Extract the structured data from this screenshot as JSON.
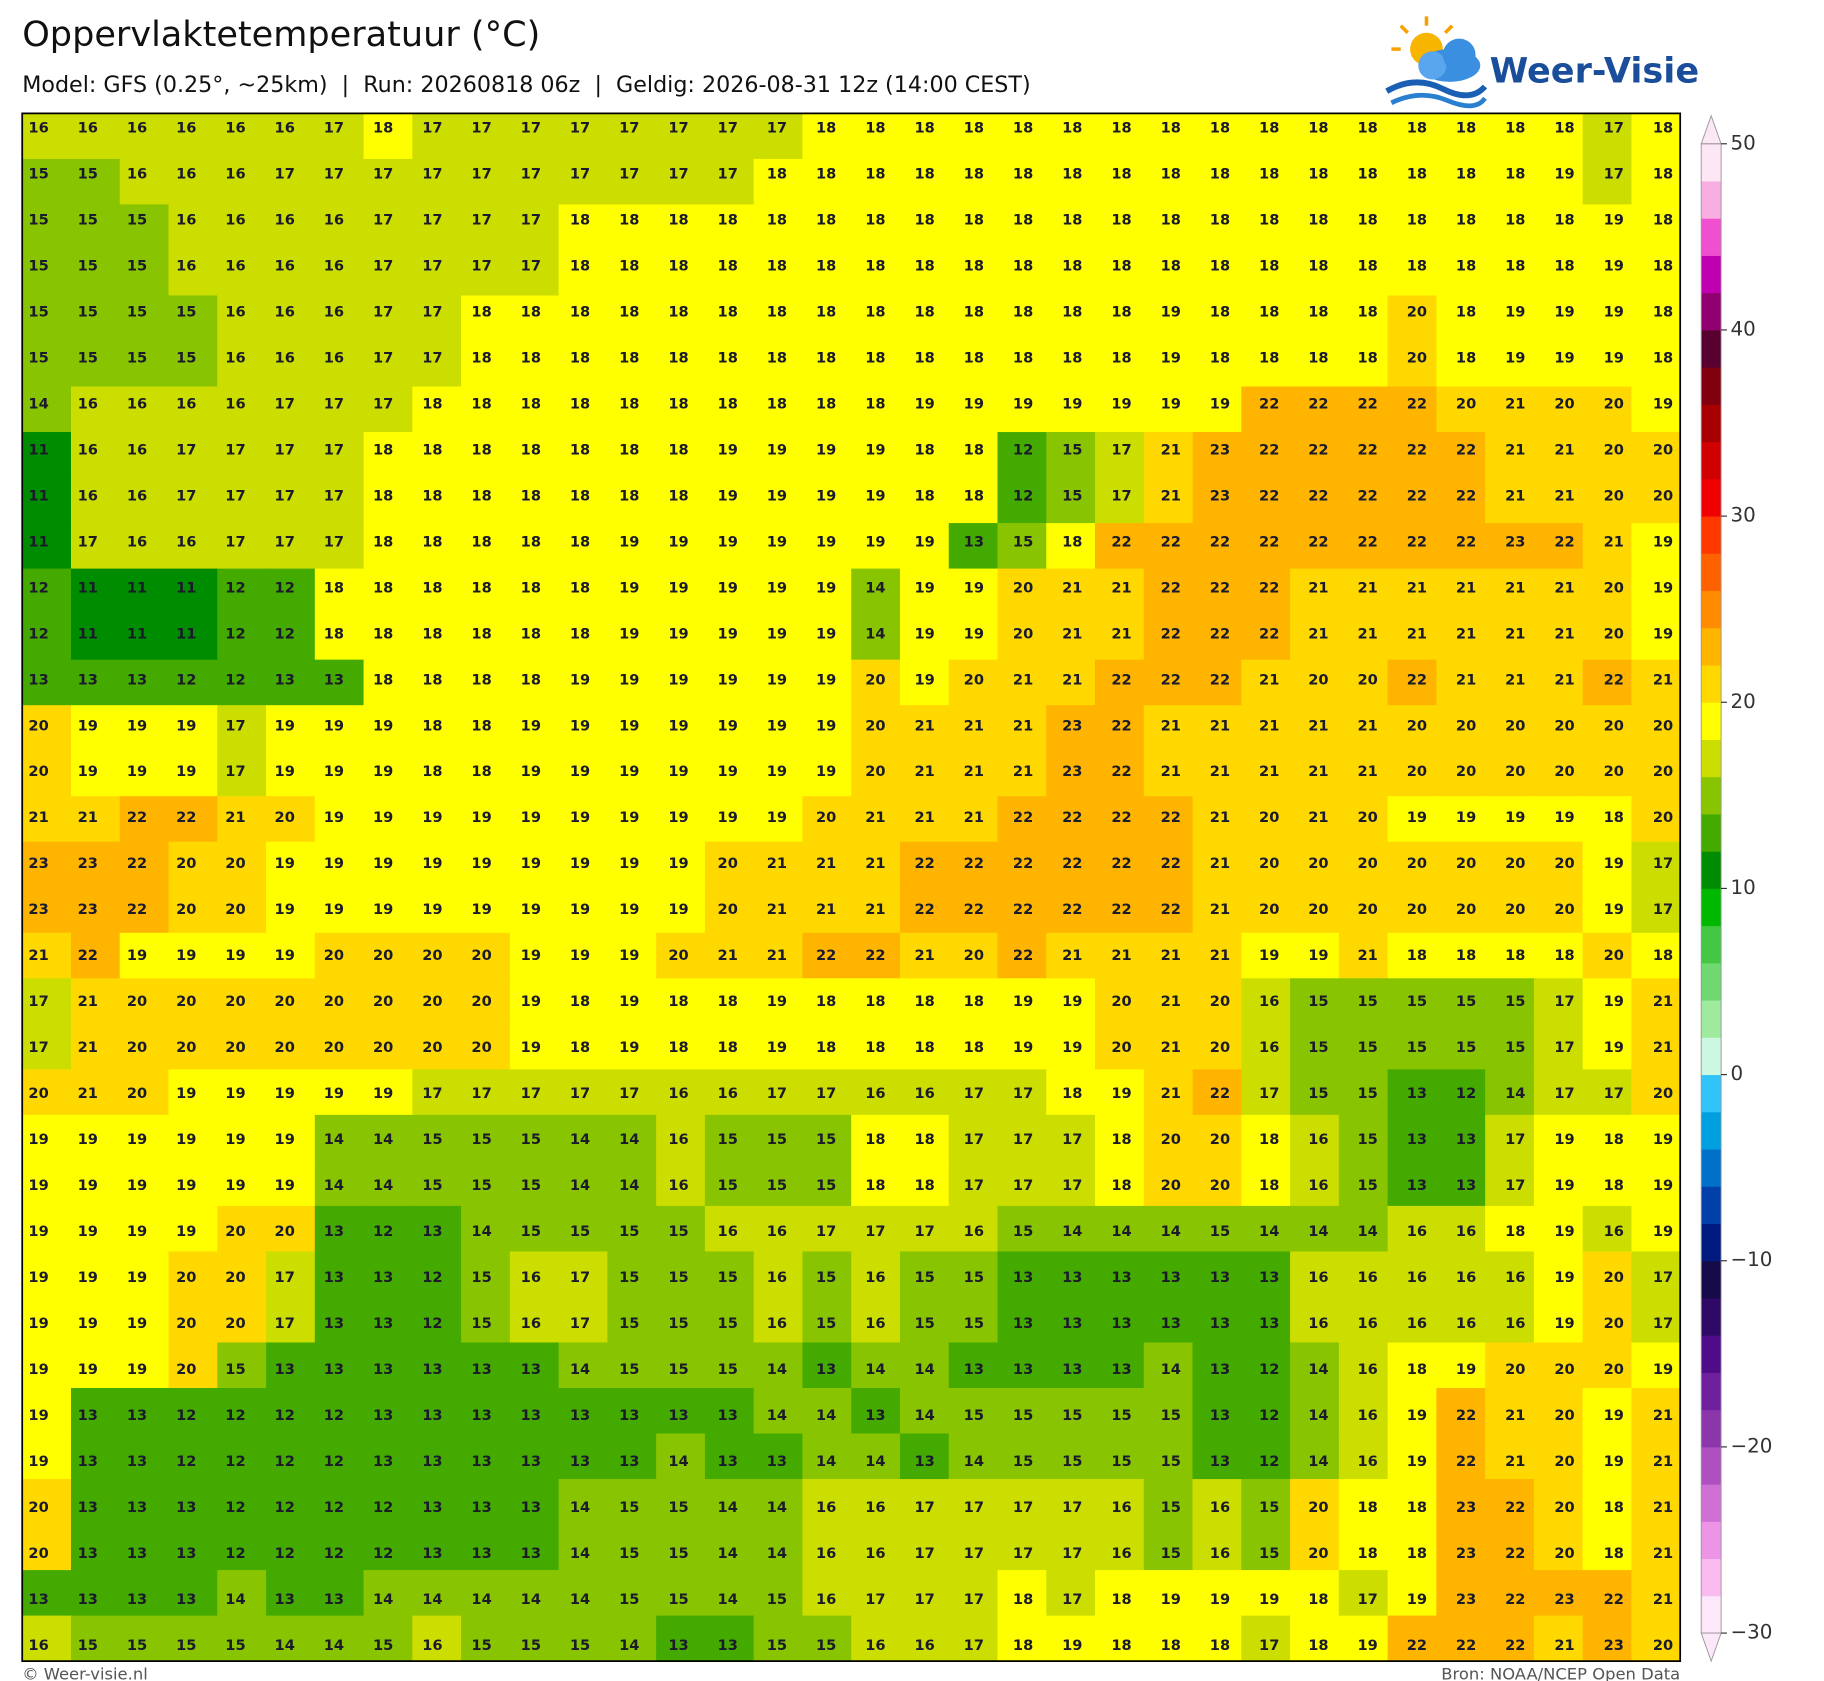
{
  "header": {
    "title": "Oppervlaktetemperatuur (°C)",
    "subtitle": "Model: GFS (0.25°, ~25km)  |  Run: 20260818 06z  |  Geldig: 2026-08-31 12z (14:00 CEST)",
    "logo": "Weer-Visie"
  },
  "map": {
    "type": "heatmap",
    "values": [
      [
        16,
        16,
        16,
        16,
        16,
        16,
        17,
        18,
        17,
        17,
        17,
        17,
        17,
        17,
        17,
        17,
        18,
        18,
        18,
        18,
        18,
        18,
        18,
        18,
        18,
        18,
        18,
        18,
        18,
        18,
        18,
        18,
        17,
        18
      ],
      [
        15,
        15,
        16,
        16,
        16,
        17,
        17,
        17,
        17,
        17,
        17,
        17,
        17,
        17,
        17,
        18,
        18,
        18,
        18,
        18,
        18,
        18,
        18,
        18,
        18,
        18,
        18,
        18,
        18,
        18,
        18,
        19,
        17,
        18
      ],
      [
        15,
        15,
        15,
        16,
        16,
        16,
        16,
        17,
        17,
        17,
        17,
        18,
        18,
        18,
        18,
        18,
        18,
        18,
        18,
        18,
        18,
        18,
        18,
        18,
        18,
        18,
        18,
        18,
        18,
        18,
        18,
        18,
        19,
        18
      ],
      [
        15,
        15,
        15,
        16,
        16,
        16,
        16,
        17,
        17,
        17,
        17,
        18,
        18,
        18,
        18,
        18,
        18,
        18,
        18,
        18,
        18,
        18,
        18,
        18,
        18,
        18,
        18,
        18,
        18,
        18,
        18,
        18,
        19,
        18
      ],
      [
        15,
        15,
        15,
        15,
        16,
        16,
        16,
        17,
        17,
        18,
        18,
        18,
        18,
        18,
        18,
        18,
        18,
        18,
        18,
        18,
        18,
        18,
        18,
        19,
        18,
        18,
        18,
        18,
        20,
        18,
        19,
        19,
        19,
        18
      ],
      [
        15,
        15,
        15,
        15,
        16,
        16,
        16,
        17,
        17,
        18,
        18,
        18,
        18,
        18,
        18,
        18,
        18,
        18,
        18,
        18,
        18,
        18,
        18,
        19,
        18,
        18,
        18,
        18,
        20,
        18,
        19,
        19,
        19,
        18
      ],
      [
        14,
        16,
        16,
        16,
        16,
        17,
        17,
        17,
        18,
        18,
        18,
        18,
        18,
        18,
        18,
        18,
        18,
        18,
        19,
        19,
        19,
        19,
        19,
        19,
        19,
        22,
        22,
        22,
        22,
        20,
        21,
        20,
        20,
        19
      ],
      [
        11,
        16,
        16,
        17,
        17,
        17,
        17,
        18,
        18,
        18,
        18,
        18,
        18,
        18,
        19,
        19,
        19,
        19,
        18,
        18,
        12,
        15,
        17,
        21,
        23,
        22,
        22,
        22,
        22,
        22,
        21,
        21,
        20,
        20
      ],
      [
        11,
        16,
        16,
        17,
        17,
        17,
        17,
        18,
        18,
        18,
        18,
        18,
        18,
        18,
        19,
        19,
        19,
        19,
        18,
        18,
        12,
        15,
        17,
        21,
        23,
        22,
        22,
        22,
        22,
        22,
        21,
        21,
        20,
        20
      ],
      [
        11,
        17,
        16,
        16,
        17,
        17,
        17,
        18,
        18,
        18,
        18,
        18,
        19,
        19,
        19,
        19,
        19,
        19,
        19,
        13,
        15,
        18,
        22,
        22,
        22,
        22,
        22,
        22,
        22,
        22,
        23,
        22,
        21,
        19
      ],
      [
        12,
        11,
        11,
        11,
        12,
        12,
        18,
        18,
        18,
        18,
        18,
        18,
        19,
        19,
        19,
        19,
        19,
        14,
        19,
        19,
        20,
        21,
        21,
        22,
        22,
        22,
        21,
        21,
        21,
        21,
        21,
        21,
        20,
        19
      ],
      [
        12,
        11,
        11,
        11,
        12,
        12,
        18,
        18,
        18,
        18,
        18,
        18,
        19,
        19,
        19,
        19,
        19,
        14,
        19,
        19,
        20,
        21,
        21,
        22,
        22,
        22,
        21,
        21,
        21,
        21,
        21,
        21,
        20,
        19
      ],
      [
        13,
        13,
        13,
        12,
        12,
        13,
        13,
        18,
        18,
        18,
        18,
        19,
        19,
        19,
        19,
        19,
        19,
        20,
        19,
        20,
        21,
        21,
        22,
        22,
        22,
        21,
        20,
        20,
        22,
        21,
        21,
        21,
        22,
        21
      ],
      [
        20,
        19,
        19,
        19,
        17,
        19,
        19,
        19,
        18,
        18,
        19,
        19,
        19,
        19,
        19,
        19,
        19,
        20,
        21,
        21,
        21,
        23,
        22,
        21,
        21,
        21,
        21,
        21,
        20,
        20,
        20,
        20,
        20,
        20
      ],
      [
        20,
        19,
        19,
        19,
        17,
        19,
        19,
        19,
        18,
        18,
        19,
        19,
        19,
        19,
        19,
        19,
        19,
        20,
        21,
        21,
        21,
        23,
        22,
        21,
        21,
        21,
        21,
        21,
        20,
        20,
        20,
        20,
        20,
        20
      ],
      [
        21,
        21,
        22,
        22,
        21,
        20,
        19,
        19,
        19,
        19,
        19,
        19,
        19,
        19,
        19,
        19,
        20,
        21,
        21,
        21,
        22,
        22,
        22,
        22,
        21,
        20,
        21,
        20,
        19,
        19,
        19,
        19,
        18,
        20
      ],
      [
        23,
        23,
        22,
        20,
        20,
        19,
        19,
        19,
        19,
        19,
        19,
        19,
        19,
        19,
        20,
        21,
        21,
        21,
        22,
        22,
        22,
        22,
        22,
        22,
        21,
        20,
        20,
        20,
        20,
        20,
        20,
        20,
        19,
        17
      ],
      [
        23,
        23,
        22,
        20,
        20,
        19,
        19,
        19,
        19,
        19,
        19,
        19,
        19,
        19,
        20,
        21,
        21,
        21,
        22,
        22,
        22,
        22,
        22,
        22,
        21,
        20,
        20,
        20,
        20,
        20,
        20,
        20,
        19,
        17
      ],
      [
        21,
        22,
        19,
        19,
        19,
        19,
        20,
        20,
        20,
        20,
        19,
        19,
        19,
        20,
        21,
        21,
        22,
        22,
        21,
        20,
        22,
        21,
        21,
        21,
        21,
        19,
        19,
        21,
        18,
        18,
        18,
        18,
        20,
        18
      ],
      [
        17,
        21,
        20,
        20,
        20,
        20,
        20,
        20,
        20,
        20,
        19,
        18,
        19,
        18,
        18,
        19,
        18,
        18,
        18,
        18,
        19,
        19,
        20,
        21,
        20,
        16,
        15,
        15,
        15,
        15,
        15,
        17,
        19,
        21
      ],
      [
        17,
        21,
        20,
        20,
        20,
        20,
        20,
        20,
        20,
        20,
        19,
        18,
        19,
        18,
        18,
        19,
        18,
        18,
        18,
        18,
        19,
        19,
        20,
        21,
        20,
        16,
        15,
        15,
        15,
        15,
        15,
        17,
        19,
        21
      ],
      [
        20,
        21,
        20,
        19,
        19,
        19,
        19,
        19,
        17,
        17,
        17,
        17,
        17,
        16,
        16,
        17,
        17,
        16,
        16,
        17,
        17,
        18,
        19,
        21,
        22,
        17,
        15,
        15,
        13,
        12,
        14,
        17,
        17,
        20
      ],
      [
        19,
        19,
        19,
        19,
        19,
        19,
        14,
        14,
        15,
        15,
        15,
        14,
        14,
        16,
        15,
        15,
        15,
        18,
        18,
        17,
        17,
        17,
        18,
        20,
        20,
        18,
        16,
        15,
        13,
        13,
        17,
        19,
        18,
        19
      ],
      [
        19,
        19,
        19,
        19,
        19,
        19,
        14,
        14,
        15,
        15,
        15,
        14,
        14,
        16,
        15,
        15,
        15,
        18,
        18,
        17,
        17,
        17,
        18,
        20,
        20,
        18,
        16,
        15,
        13,
        13,
        17,
        19,
        18,
        19
      ],
      [
        19,
        19,
        19,
        19,
        20,
        20,
        13,
        12,
        13,
        14,
        15,
        15,
        15,
        15,
        16,
        16,
        17,
        17,
        17,
        16,
        15,
        14,
        14,
        14,
        15,
        14,
        14,
        14,
        16,
        16,
        18,
        19,
        16,
        19
      ],
      [
        19,
        19,
        19,
        20,
        20,
        17,
        13,
        13,
        12,
        15,
        16,
        17,
        15,
        15,
        15,
        16,
        15,
        16,
        15,
        15,
        13,
        13,
        13,
        13,
        13,
        13,
        16,
        16,
        16,
        16,
        16,
        19,
        20,
        17
      ],
      [
        19,
        19,
        19,
        20,
        20,
        17,
        13,
        13,
        12,
        15,
        16,
        17,
        15,
        15,
        15,
        16,
        15,
        16,
        15,
        15,
        13,
        13,
        13,
        13,
        13,
        13,
        16,
        16,
        16,
        16,
        16,
        19,
        20,
        17
      ],
      [
        19,
        19,
        19,
        20,
        15,
        13,
        13,
        13,
        13,
        13,
        13,
        14,
        15,
        15,
        15,
        14,
        13,
        14,
        14,
        13,
        13,
        13,
        13,
        14,
        13,
        12,
        14,
        16,
        18,
        19,
        20,
        20,
        20,
        19
      ],
      [
        19,
        13,
        13,
        12,
        12,
        12,
        12,
        13,
        13,
        13,
        13,
        13,
        13,
        13,
        13,
        14,
        14,
        13,
        14,
        15,
        15,
        15,
        15,
        15,
        13,
        12,
        14,
        16,
        19,
        22,
        21,
        20,
        19,
        21
      ],
      [
        19,
        13,
        13,
        12,
        12,
        12,
        12,
        13,
        13,
        13,
        13,
        13,
        13,
        14,
        13,
        13,
        14,
        14,
        13,
        14,
        15,
        15,
        15,
        15,
        13,
        12,
        14,
        16,
        19,
        22,
        21,
        20,
        19,
        21
      ],
      [
        20,
        13,
        13,
        13,
        12,
        12,
        12,
        12,
        13,
        13,
        13,
        14,
        15,
        15,
        14,
        14,
        16,
        16,
        17,
        17,
        17,
        17,
        16,
        15,
        16,
        15,
        20,
        18,
        18,
        23,
        22,
        20,
        18,
        21
      ],
      [
        20,
        13,
        13,
        13,
        12,
        12,
        12,
        12,
        13,
        13,
        13,
        14,
        15,
        15,
        14,
        14,
        16,
        16,
        17,
        17,
        17,
        17,
        16,
        15,
        16,
        15,
        20,
        18,
        18,
        23,
        22,
        20,
        18,
        21
      ],
      [
        13,
        13,
        13,
        13,
        14,
        13,
        13,
        14,
        14,
        14,
        14,
        14,
        15,
        15,
        14,
        15,
        16,
        17,
        17,
        17,
        18,
        17,
        18,
        19,
        19,
        19,
        18,
        17,
        19,
        23,
        22,
        23,
        22,
        21
      ],
      [
        16,
        15,
        15,
        15,
        15,
        14,
        14,
        15,
        16,
        15,
        15,
        15,
        14,
        13,
        13,
        15,
        15,
        16,
        16,
        17,
        18,
        19,
        18,
        18,
        18,
        17,
        18,
        19,
        22,
        22,
        22,
        21,
        23,
        20
      ]
    ],
    "colorbar": {
      "ylim": [
        -30,
        50
      ],
      "yticks": [
        {
          "value": -30,
          "label": "−30"
        },
        {
          "value": -20,
          "label": "−20"
        },
        {
          "value": -10,
          "label": "−10"
        },
        0,
        10,
        20,
        30,
        40,
        50
      ],
      "colors": [
        "#fde8fa",
        "#fabcf0",
        "#ec94e6",
        "#d070d4",
        "#ae50c0",
        "#8c36ac",
        "#6e209c",
        "#4e0c88",
        "#2e0a66",
        "#160a48",
        "#001a80",
        "#0040a8",
        "#0070c8",
        "#00a0e0",
        "#30c4f8",
        "#ccf7e0",
        "#a0eaa0",
        "#70d870",
        "#44c844",
        "#00b800",
        "#008c00",
        "#44aa00",
        "#88c400",
        "#ccdd00",
        "#ffff00",
        "#ffd800",
        "#ffb400",
        "#ff8c00",
        "#ff6000",
        "#ff3800",
        "#f00000",
        "#d00000",
        "#a80000",
        "#800010",
        "#580030",
        "#900070",
        "#c000b0",
        "#f050d0",
        "#f8aee0",
        "#fde6f5"
      ]
    }
  },
  "footer": {
    "credit": "© Weer-visie.nl",
    "source": "Bron: NOAA/NCEP Open Data"
  }
}
